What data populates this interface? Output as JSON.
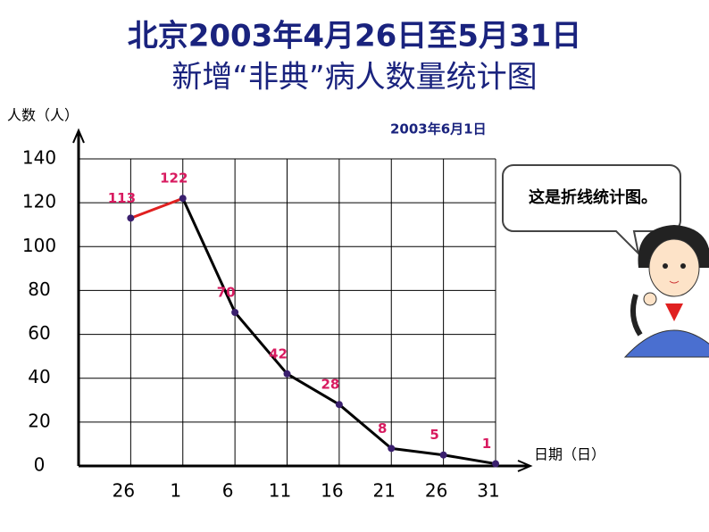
{
  "chart_data": {
    "type": "line",
    "title": "北京2003年4月26日至5月31日",
    "subtitle": "新增“非典”病人数量统计图",
    "y_label": "人数（人）",
    "x_label": "日期（日）",
    "note": "2003年6月1日",
    "speech": "这是折线统计图。",
    "categories": [
      "26",
      "1",
      "6",
      "11",
      "16",
      "21",
      "26",
      "31"
    ],
    "series": [
      {
        "color": "#000000",
        "first_segment_color": "#e02020",
        "values": [
          113,
          122,
          70,
          42,
          28,
          8,
          5,
          1
        ]
      }
    ],
    "label_color": "#d81b60",
    "ylim": [
      0,
      140
    ],
    "yticks": [
      0,
      20,
      40,
      60,
      80,
      100,
      120,
      140
    ],
    "grid": true
  }
}
